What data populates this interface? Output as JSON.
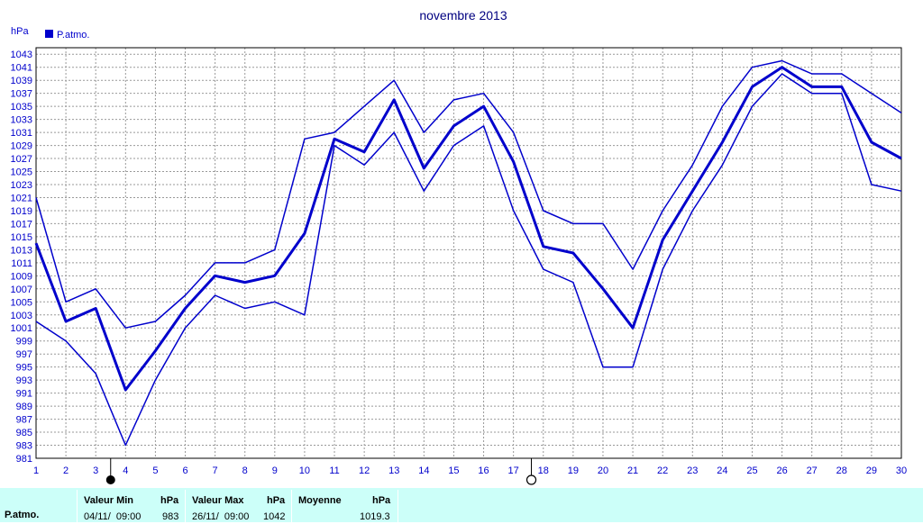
{
  "chart_data": {
    "type": "line",
    "title": "novembre 2013",
    "ylabel": "hPa",
    "legend": "P.atmo.",
    "legend_position": "top-left",
    "grid": true,
    "ylim": [
      981,
      1044
    ],
    "yticks": [
      981,
      983,
      985,
      987,
      989,
      991,
      993,
      995,
      997,
      999,
      1001,
      1003,
      1005,
      1007,
      1009,
      1011,
      1013,
      1015,
      1017,
      1019,
      1021,
      1023,
      1025,
      1027,
      1029,
      1031,
      1033,
      1035,
      1037,
      1039,
      1041,
      1043
    ],
    "x": [
      1,
      2,
      3,
      4,
      5,
      6,
      7,
      8,
      9,
      10,
      11,
      12,
      13,
      14,
      15,
      16,
      17,
      18,
      19,
      20,
      21,
      22,
      23,
      24,
      25,
      26,
      27,
      28,
      29,
      30
    ],
    "series": [
      {
        "values": [
          1021,
          1005,
          1007,
          1001,
          1002,
          1006,
          1011,
          1011,
          1013,
          1030,
          1031,
          1035,
          1039,
          1031,
          1036,
          1037,
          1031,
          1019,
          1017,
          1017,
          1010,
          1019,
          1026,
          1035,
          1041,
          1042,
          1040,
          1040,
          1037,
          1034
        ]
      },
      {
        "values": [
          1014,
          1002,
          1004,
          991.5,
          997.5,
          1004,
          1009,
          1008,
          1009,
          1015.5,
          1030,
          1028,
          1036,
          1025.5,
          1032,
          1035,
          1026.5,
          1013.5,
          1012.5,
          1007,
          1001,
          1014.5,
          1022,
          1029.5,
          1038,
          1041,
          1038,
          1038,
          1029.5,
          1027
        ]
      },
      {
        "values": [
          1002,
          999,
          994,
          983,
          993,
          1001,
          1006,
          1004,
          1005,
          1003,
          1029,
          1026,
          1031,
          1022,
          1029,
          1032,
          1019,
          1010,
          1008,
          995,
          995,
          1010,
          1019,
          1026,
          1035,
          1040,
          1037,
          1037,
          1023,
          1022
        ]
      }
    ],
    "moon_markers": [
      {
        "day": 3.5,
        "phase": "new"
      },
      {
        "day": 17.6,
        "phase": "full"
      }
    ],
    "colors": {
      "line": "#0000cc",
      "text": "#0000cc",
      "grid": "#999999"
    }
  },
  "footer": {
    "row_label": "P.atmo.",
    "min_header": "Valeur Min",
    "min_unit": "hPa",
    "min_date": "04/11/  09:00",
    "min_value": "983",
    "max_header": "Valeur Max",
    "max_unit": "hPa",
    "max_date": "26/11/  09:00",
    "max_value": "1042",
    "avg_header": "Moyenne",
    "avg_unit": "hPa",
    "avg_value": "1019.3"
  }
}
